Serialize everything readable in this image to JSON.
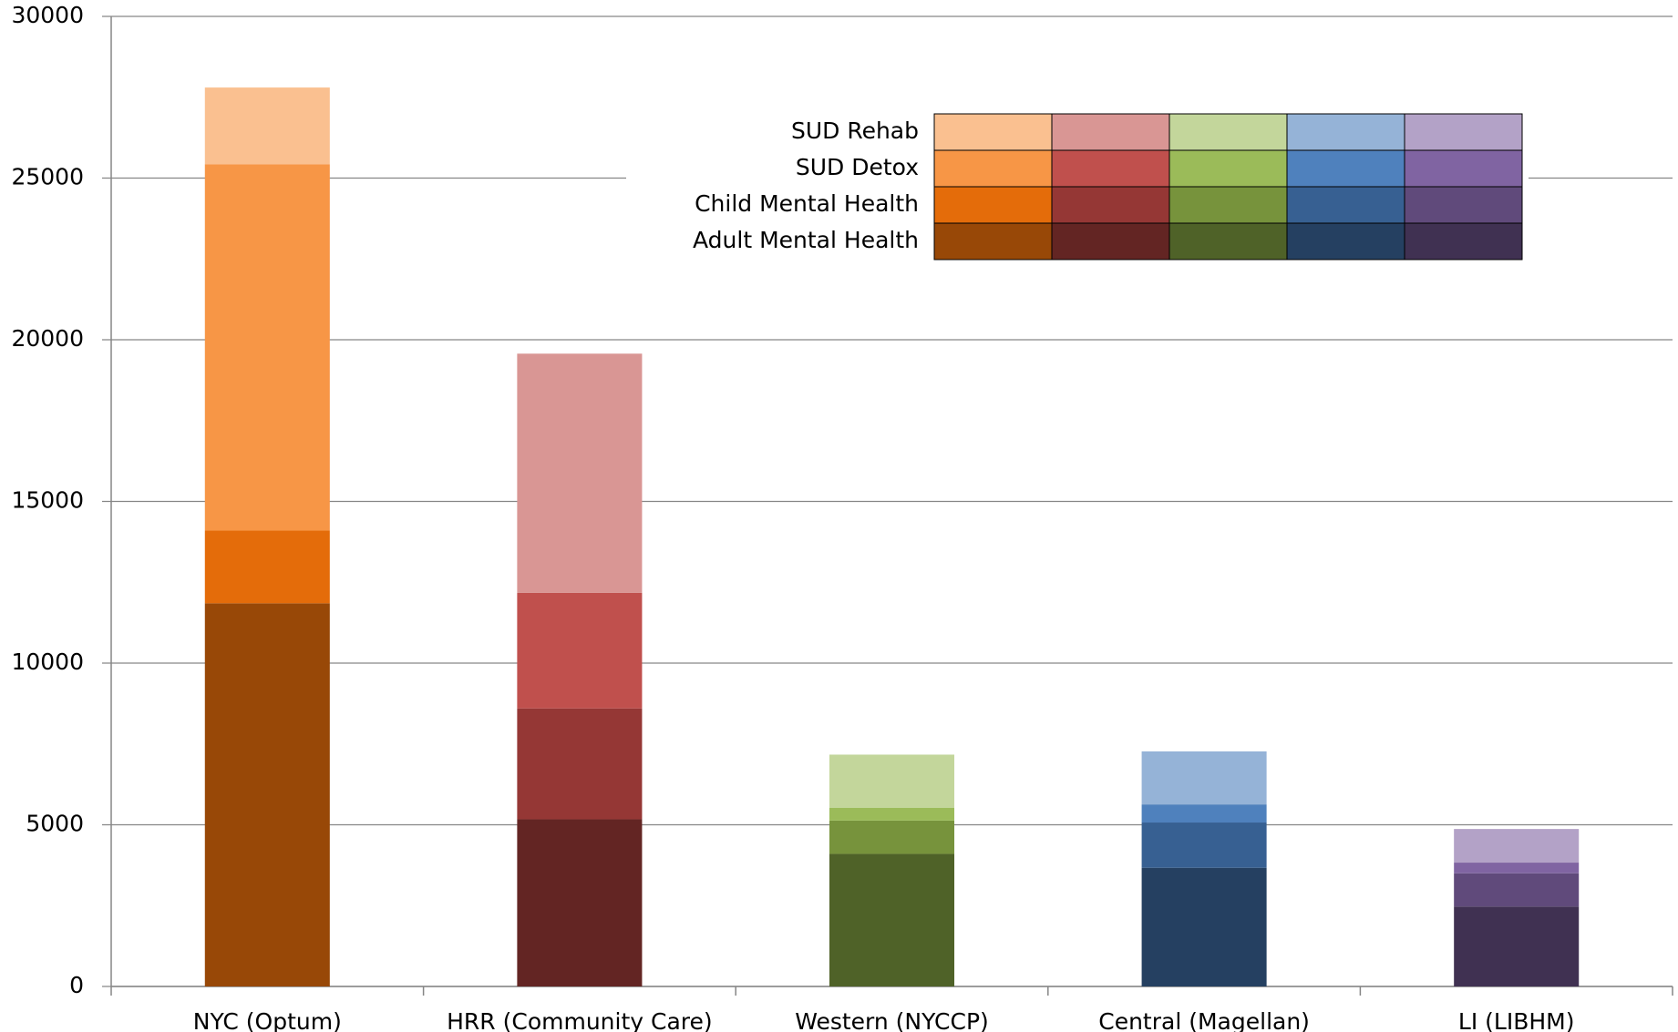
{
  "chart_data": {
    "type": "stacked_bar",
    "categories": [
      "NYC (Optum)",
      "HRR (Community Care)",
      "Western (NYCCP)",
      "Central (Magellan)",
      "LI (LIBHM)"
    ],
    "series": [
      {
        "name": "Adult Mental Health",
        "colors": [
          "#984807",
          "#632523",
          "#4f6228",
          "#254061",
          "#403152"
        ],
        "values": [
          11850,
          5170,
          4100,
          3670,
          2470
        ]
      },
      {
        "name": "Child Mental Health",
        "colors": [
          "#e46c0a",
          "#953735",
          "#77933c",
          "#376092",
          "#604a7b"
        ],
        "values": [
          2250,
          3430,
          1030,
          1400,
          1030
        ]
      },
      {
        "name": "SUD Detox",
        "colors": [
          "#f79646",
          "#c0504d",
          "#9bbb59",
          "#4f81bd",
          "#8064a2"
        ],
        "values": [
          11330,
          3570,
          400,
          560,
          330
        ]
      },
      {
        "name": "SUD Rehab",
        "colors": [
          "#fac090",
          "#d99694",
          "#c3d69b",
          "#95b3d7",
          "#b3a2c7"
        ],
        "values": [
          2370,
          7400,
          1640,
          1640,
          1040
        ]
      }
    ],
    "ylim": [
      0,
      30000
    ],
    "yticks": [
      0,
      5000,
      10000,
      15000,
      20000,
      25000,
      30000
    ],
    "grid": true,
    "legend": "upper right"
  }
}
